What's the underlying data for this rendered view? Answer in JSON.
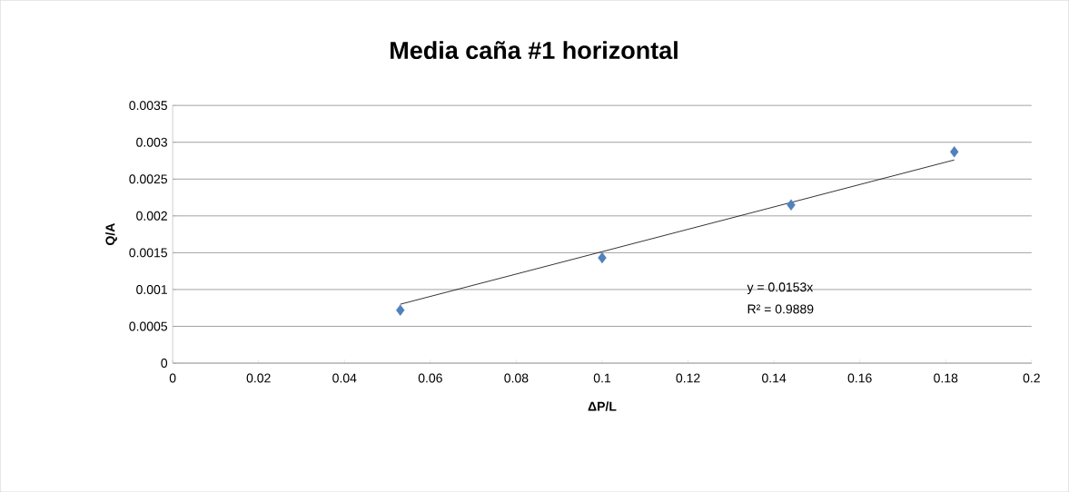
{
  "chart_data": {
    "type": "scatter",
    "title": "Media caña #1 horizontal",
    "xlabel": "ΔP/L",
    "ylabel": "Q/A",
    "series": [
      {
        "color": "#4f81bd",
        "marker": "diamond",
        "x": [
          0.053,
          0.1,
          0.144,
          0.182
        ],
        "values": [
          0.00072,
          0.00143,
          0.00215,
          0.00287
        ]
      },
      {
        "type": "line",
        "color": "#000000",
        "marker": "none",
        "line_style": "solid",
        "x": [
          0.053,
          0.182
        ],
        "values": [
          0.0008,
          0.00276
        ]
      }
    ],
    "annotations": [
      "y = 0.0153x",
      "R² = 0.9889"
    ],
    "xlim": [
      0,
      0.2
    ],
    "ylim": [
      0,
      0.0035
    ],
    "xticks": [
      0,
      0.02,
      0.04,
      0.06,
      0.08,
      0.1,
      0.12,
      0.14,
      0.16,
      0.18,
      0.2
    ],
    "yticks": [
      0,
      0.0005,
      0.001,
      0.0015,
      0.002,
      0.0025,
      0.003,
      0.0035
    ],
    "grid": "y"
  }
}
